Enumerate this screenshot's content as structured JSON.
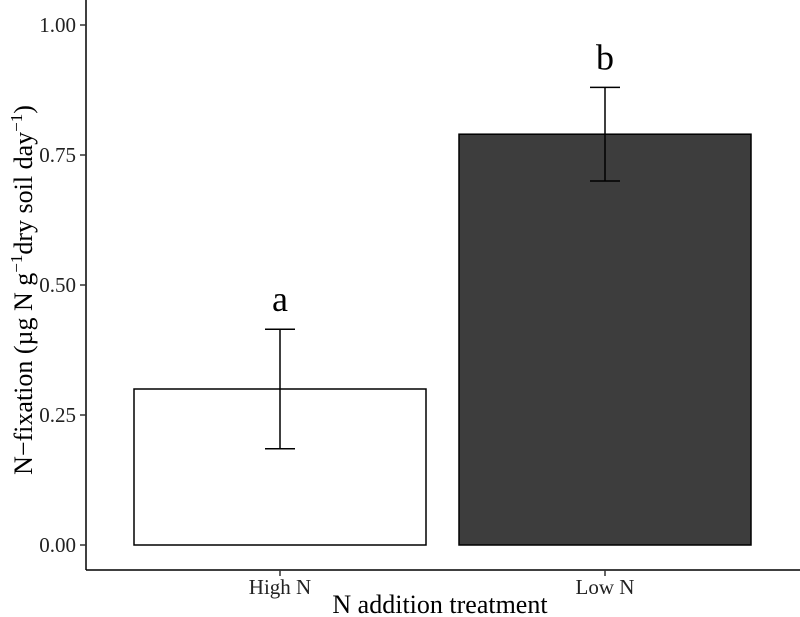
{
  "chart_data": {
    "type": "bar",
    "title": "",
    "xlabel": "N addition treatment",
    "ylabel": {
      "parts": [
        "N−fixation (µg N g",
        "−1",
        "dry soil day",
        "−1",
        ")"
      ]
    },
    "categories": [
      "High N",
      "Low N"
    ],
    "values": [
      0.3,
      0.79
    ],
    "error_low": [
      0.185,
      0.7
    ],
    "error_high": [
      0.415,
      0.88
    ],
    "significance_labels": [
      "a",
      "b"
    ],
    "bar_colors": [
      "#ffffff",
      "#3d3d3d"
    ],
    "yticks": [
      "0.00",
      "0.25",
      "0.50",
      "0.75",
      "1.00"
    ],
    "ylim": [
      0,
      1.0
    ],
    "grid": false,
    "legend": "none"
  }
}
